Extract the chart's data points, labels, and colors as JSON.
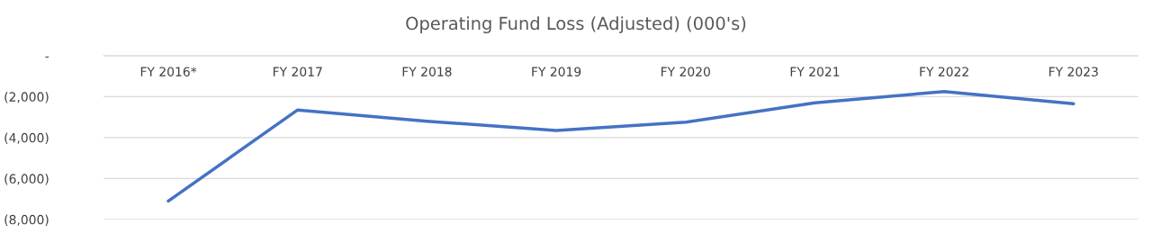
{
  "chart_data": {
    "type": "line",
    "title": "Operating Fund Loss (Adjusted) (000's)",
    "categories": [
      "FY 2016*",
      "FY 2017",
      "FY 2018",
      "FY 2019",
      "FY 2020",
      "FY 2021",
      "FY 2022",
      "FY 2023"
    ],
    "series": [
      {
        "color": "#4472c4",
        "values": [
          -7100,
          -2650,
          -3200,
          -3650,
          -3250,
          -2300,
          -1750,
          -2350
        ]
      }
    ],
    "ylim": [
      -8000,
      0
    ],
    "yticks": [
      {
        "value": -8000,
        "label": "(8,000)"
      },
      {
        "value": -6000,
        "label": "(6,000)"
      },
      {
        "value": -4000,
        "label": "(4,000)"
      },
      {
        "value": -2000,
        "label": "(2,000)"
      },
      {
        "value": 0,
        "label": "-"
      }
    ],
    "grid": "y",
    "marker": "none",
    "line_style": "solid"
  }
}
